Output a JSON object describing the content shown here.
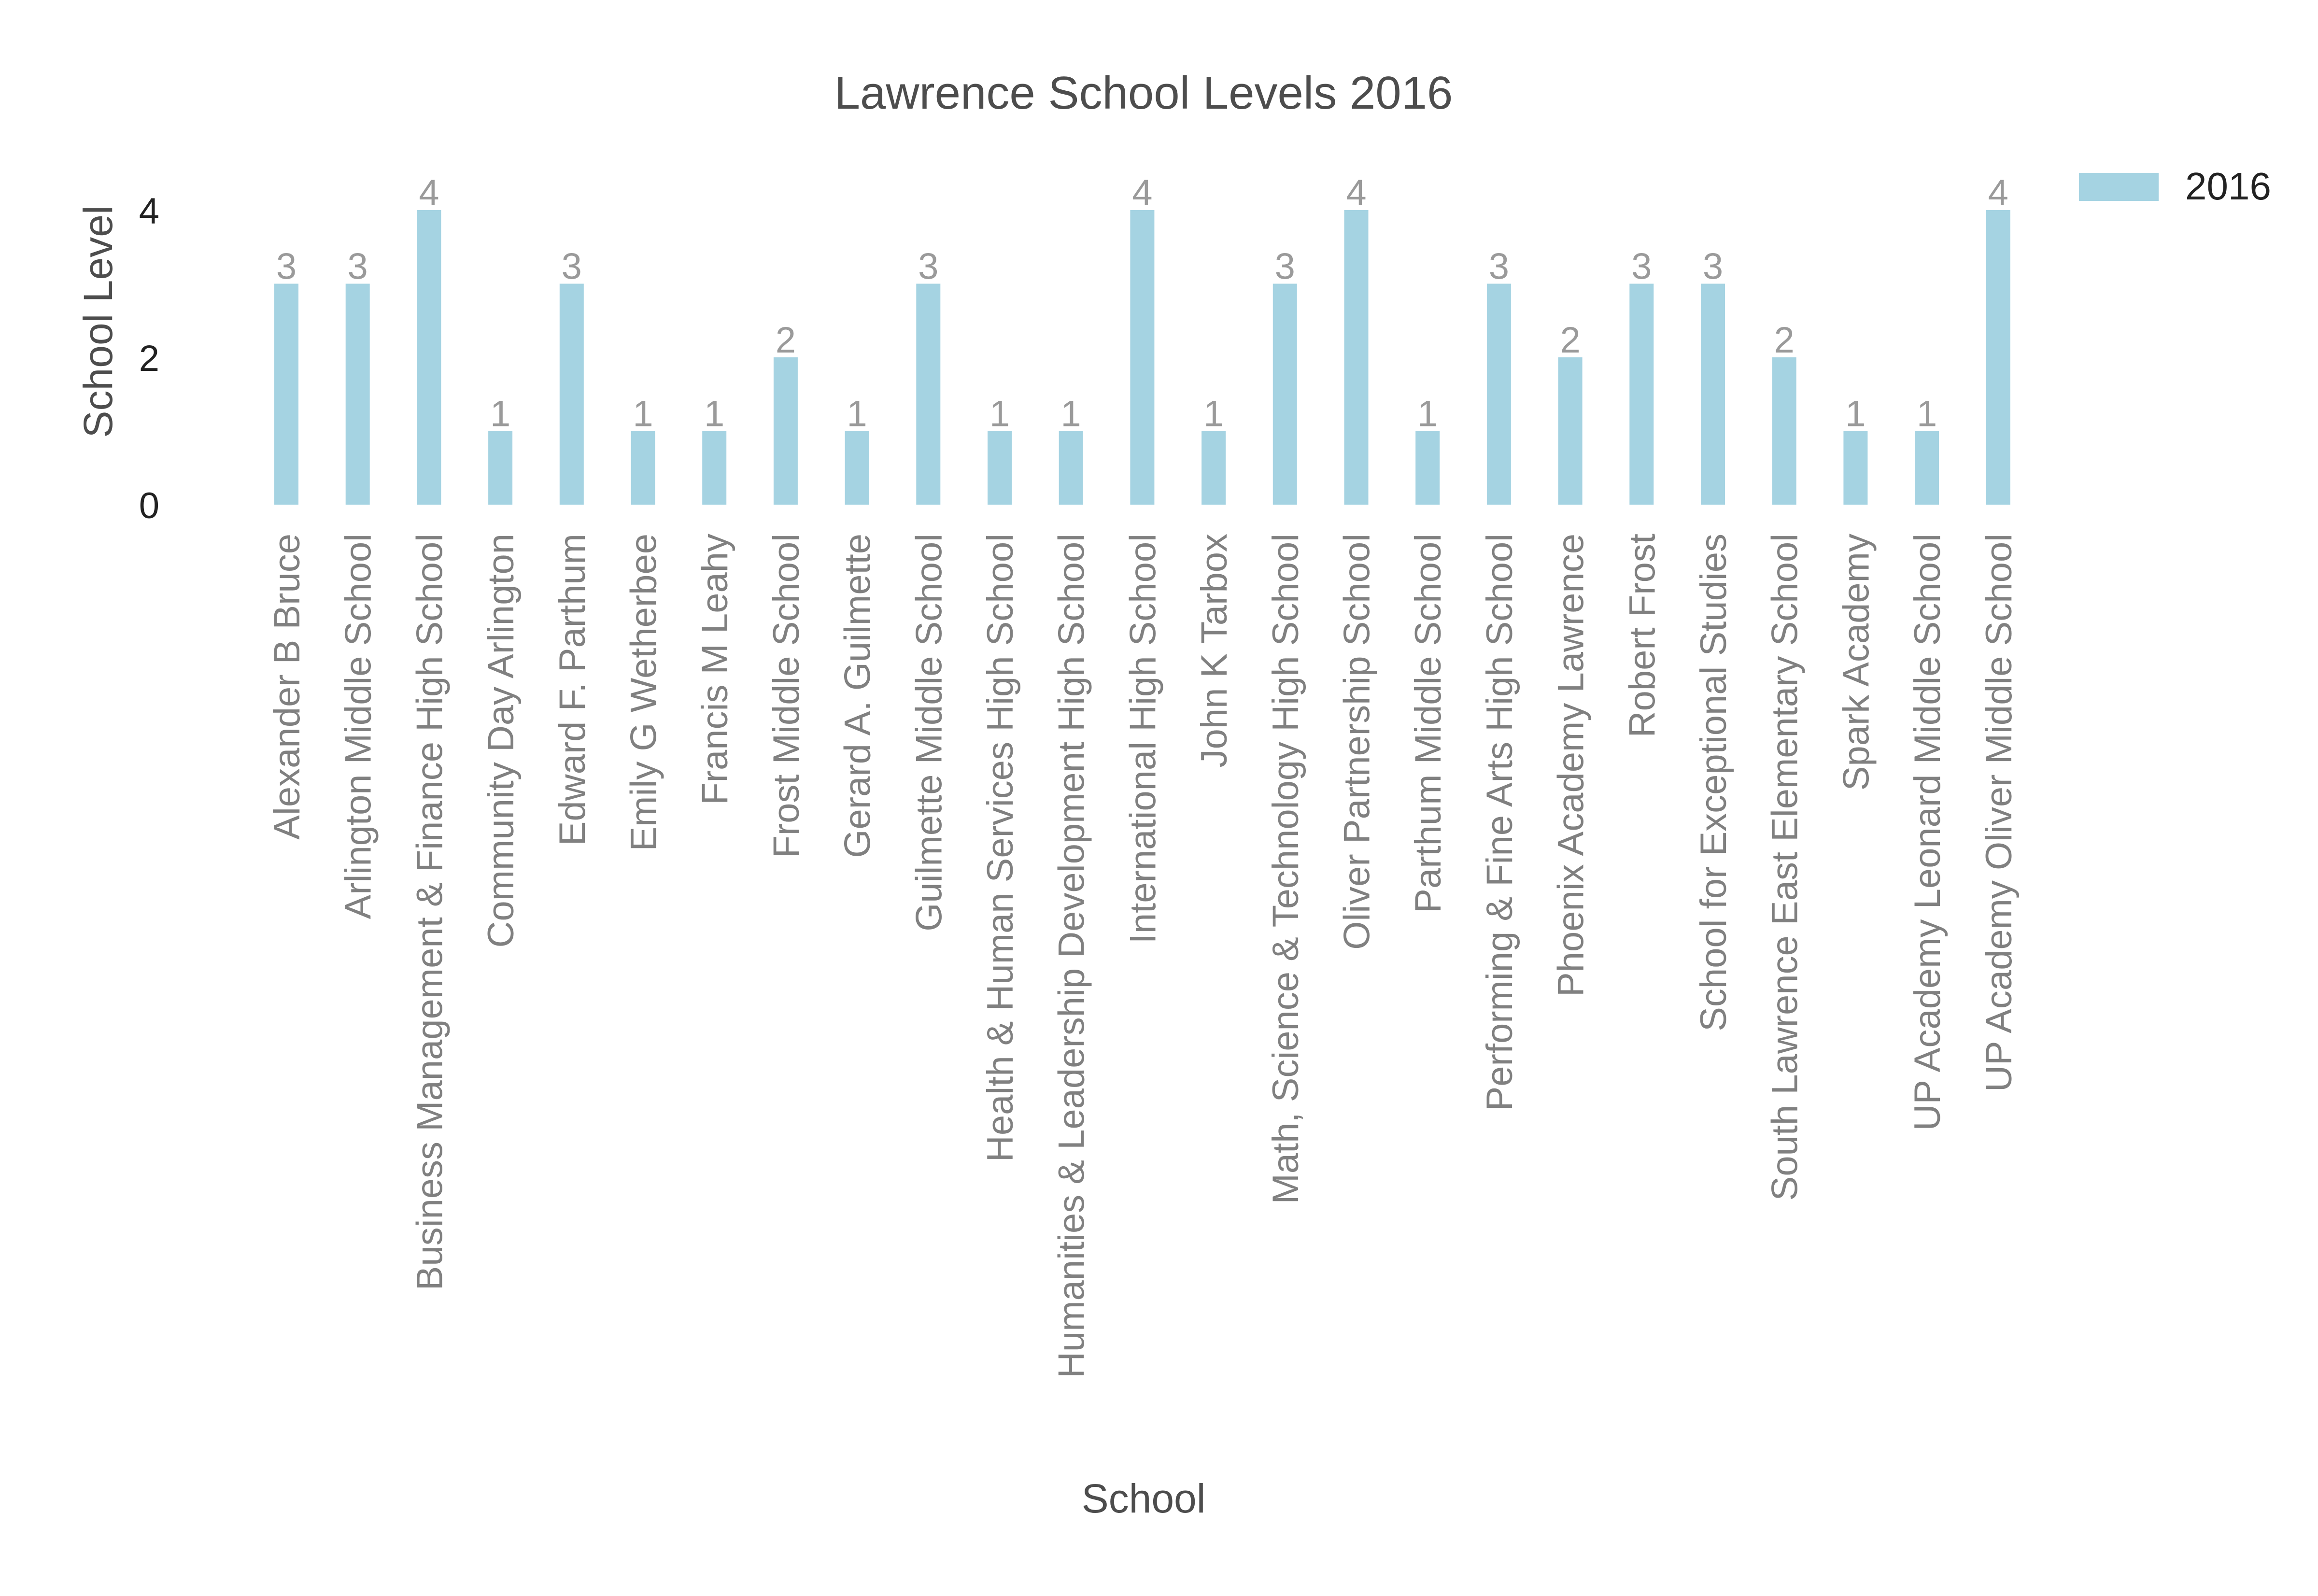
{
  "chart_data": {
    "type": "bar",
    "title": "Lawrence School Levels 2016",
    "xlabel": "School",
    "ylabel": "School Level",
    "ylim": [
      0,
      4.5
    ],
    "yticks": [
      0,
      2,
      4
    ],
    "grid": false,
    "legend_position": "top-right",
    "categories": [
      "Alexander B Bruce",
      "Arlington Middle School",
      "Business Management & Finance High School",
      "Community Day Arlington",
      "Edward F. Parthum",
      "Emily G Wetherbee",
      "Francis M Leahy",
      "Frost Middle School",
      "Gerard A. Guilmette",
      "Guilmette Middle School",
      "Health & Human Services High School",
      "Humanities & Leadership Development High School",
      "International High School",
      "John K Tarbox",
      "Math, Science & Technology High School",
      "Oliver Partnership School",
      "Parthum Middle School",
      "Performing & Fine Arts High School",
      "Phoenix Academy Lawrence",
      "Robert Frost",
      "School for Exceptional Studies",
      "South Lawrence East Elementary School",
      "Spark Academy",
      "UP Academy Leonard Middle School",
      "UP Academy Oliver Middle School"
    ],
    "series": [
      {
        "name": "2016",
        "color": "#a5d3e2",
        "values": [
          3,
          3,
          4,
          1,
          3,
          1,
          1,
          2,
          1,
          3,
          1,
          1,
          4,
          1,
          3,
          4,
          1,
          3,
          2,
          3,
          3,
          2,
          1,
          1,
          4
        ]
      }
    ],
    "colors": {
      "title": "#4d4d4d",
      "axis_label": "#4d4d4d",
      "tick_label": "#222222",
      "category_label": "#808080",
      "data_label": "#9a9a9a",
      "legend_text": "#222222"
    }
  }
}
